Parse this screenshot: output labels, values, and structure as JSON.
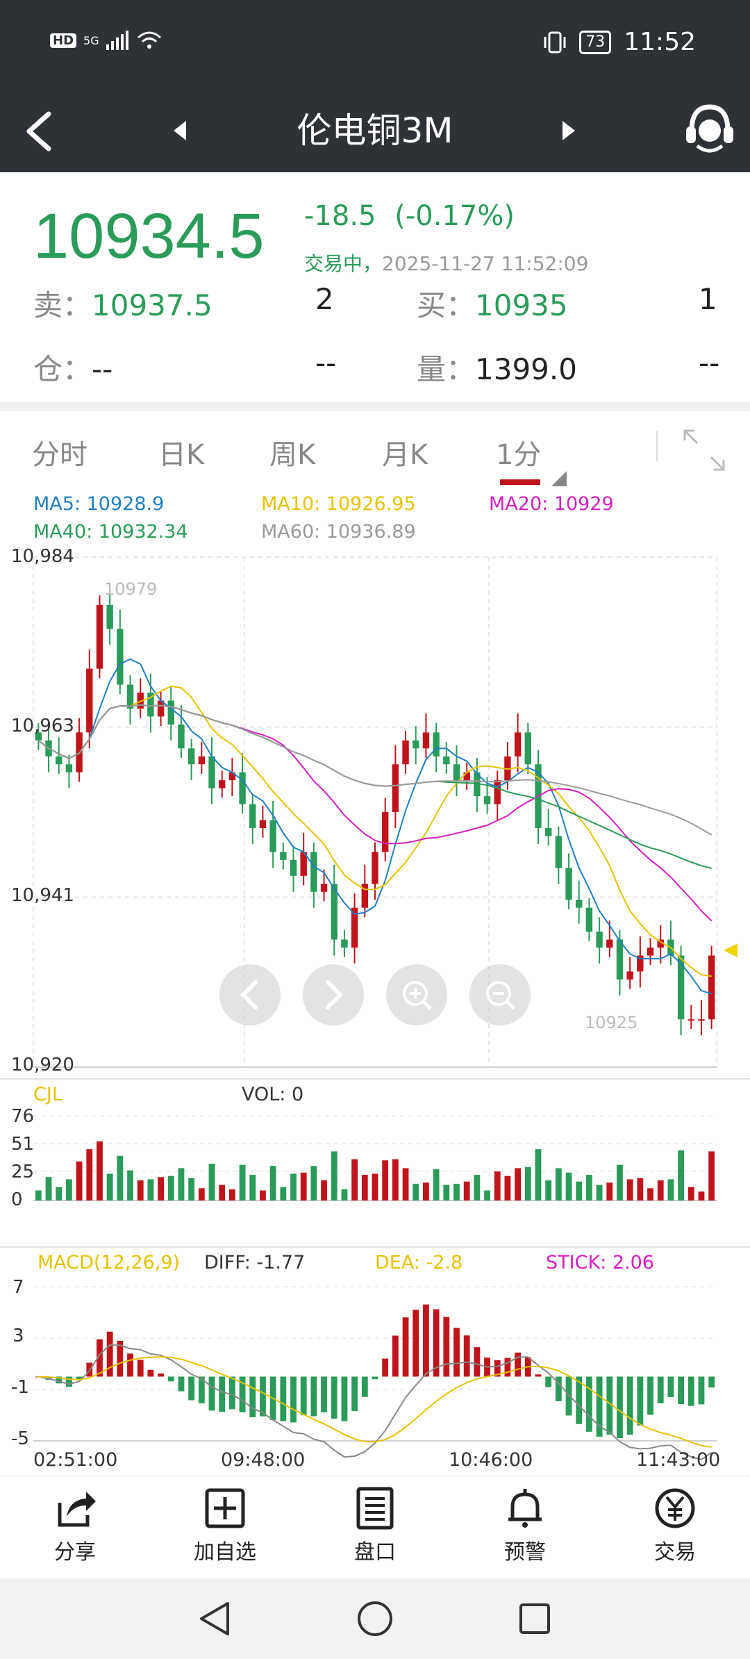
{
  "status_bar": {
    "hd": "HD",
    "network": "5G",
    "battery": "73",
    "time": "11:52"
  },
  "header": {
    "title": "伦电铜3M"
  },
  "quote": {
    "price": "10934.5",
    "change": "-18.5",
    "change_pct": "(-0.17%)",
    "status": "交易中，",
    "timestamp": "2025-11-27 11:52:09",
    "sell_label": "卖：",
    "sell_price": "10937.5",
    "sell_qty": "2",
    "buy_label": "买：",
    "buy_price": "10935",
    "buy_qty": "1",
    "oi_label": "仓：",
    "oi_value": "--",
    "oi_change": "--",
    "vol_label": "量：",
    "vol_value": "1399.0",
    "vol_change": "--"
  },
  "tabs": [
    "分时",
    "日K",
    "周K",
    "月K",
    "1分"
  ],
  "active_tab": "1分",
  "ma": {
    "ma5": "MA5: 10928.9",
    "ma10": "MA10: 10926.95",
    "ma20": "MA20: 10929",
    "ma40": "MA40: 10932.34",
    "ma60": "MA60: 10936.89"
  },
  "colors": {
    "up": "#c0141c",
    "down": "#2a9b5a",
    "ma5": "#1f7fc0",
    "ma10": "#e6c200",
    "ma20": "#d61fc0",
    "ma40": "#2a9b5a",
    "ma60": "#9a9a9a"
  },
  "chart_data": [
    {
      "type": "candlestick",
      "y_ticks": [
        "10,984",
        "10,963",
        "10,941",
        "10,920"
      ],
      "ylim": [
        10920,
        10984
      ],
      "high_label": "10979",
      "low_label": "10925",
      "close": [
        10961,
        10959,
        10958,
        10957,
        10962,
        10970,
        10978,
        10975,
        10968,
        10965,
        10967,
        10964,
        10966,
        10963,
        10960,
        10958,
        10959,
        10955,
        10956,
        10957,
        10953,
        10950,
        10951,
        10947,
        10946,
        10944,
        10947,
        10942,
        10943,
        10936,
        10935,
        10940,
        10943,
        10947,
        10952,
        10958,
        10961,
        10960,
        10962,
        10959,
        10958,
        10956,
        10957,
        10954,
        10953,
        10956,
        10959,
        10962,
        10958,
        10950,
        10949,
        10945,
        10941,
        10940,
        10937,
        10935,
        10936,
        10931,
        10932,
        10934,
        10935,
        10936,
        10934,
        10926,
        10926,
        10926,
        10934
      ],
      "volume_ticks": [
        "76",
        "51",
        "25",
        "0"
      ],
      "volume_label": "CJL",
      "volume_value": "VOL: 0"
    },
    {
      "type": "line",
      "title": "MACD(12,26,9)",
      "diff": "DIFF: -1.77",
      "dea": "DEA: -2.8",
      "stick": "STICK: 2.06",
      "y_ticks": [
        "7",
        "3",
        "-1",
        "-5"
      ],
      "ylim": [
        -5,
        7
      ],
      "x_ticks": [
        "02:51:00",
        "09:48:00",
        "10:46:00",
        "11:43:00"
      ]
    }
  ],
  "chart_controls": {
    "prev": "chevron-left-icon",
    "next": "chevron-right-icon",
    "zoom_in": "zoom-in-icon",
    "zoom_out": "zoom-out-icon"
  },
  "toolbar": {
    "share": "分享",
    "add_watch": "加自选",
    "order_book": "盘口",
    "alert": "预警",
    "trade": "交易"
  }
}
